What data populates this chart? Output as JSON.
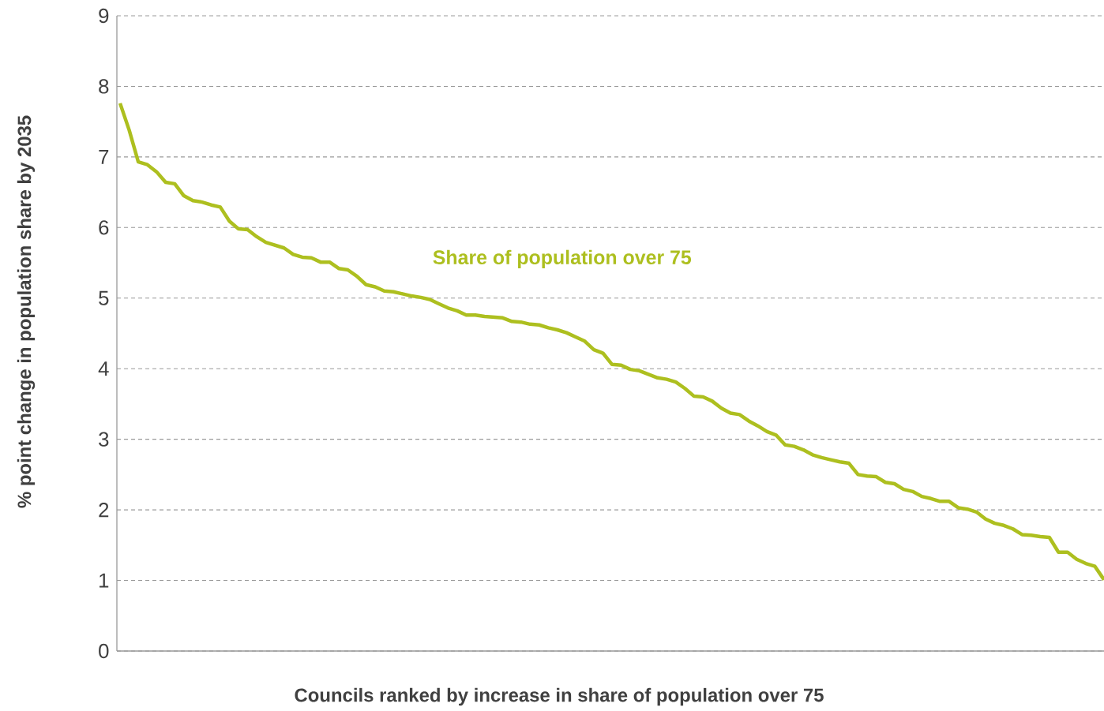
{
  "chart_data": {
    "type": "line",
    "xlabel": "Councils ranked by increase in share of population over 75",
    "ylabel": "% point change in population share by 2035",
    "categories": [
      null,
      null,
      null,
      null,
      null,
      null,
      null,
      null,
      null,
      null,
      null,
      null,
      null,
      null,
      null,
      null,
      null,
      null,
      null,
      null,
      null,
      null,
      null,
      null,
      null,
      null,
      null,
      null,
      null,
      null,
      null,
      null,
      null,
      null,
      null,
      null,
      null,
      null,
      null,
      null,
      null,
      null,
      null,
      null,
      null,
      null,
      null,
      null,
      null,
      null,
      null,
      null,
      null,
      null,
      null,
      null,
      null,
      null,
      null,
      null,
      null,
      null,
      null,
      null,
      null,
      null,
      null,
      null,
      null,
      null,
      null,
      null,
      null,
      null,
      null,
      null,
      null,
      null,
      null,
      null,
      null,
      null,
      null,
      null,
      null,
      null,
      null,
      null,
      null,
      null,
      null,
      null,
      null,
      null,
      null,
      null,
      null,
      null,
      null,
      null,
      null,
      null,
      null,
      null,
      null,
      null,
      null,
      null,
      null
    ],
    "series": [
      {
        "name": "Share of population over 75",
        "color": "#adbf1f",
        "values": [
          7.76,
          7.38,
          6.93,
          6.89,
          6.79,
          6.64,
          6.62,
          6.45,
          6.38,
          6.36,
          6.32,
          6.29,
          6.09,
          5.98,
          5.97,
          5.87,
          5.79,
          5.75,
          5.71,
          5.62,
          5.58,
          5.57,
          5.51,
          5.51,
          5.42,
          5.4,
          5.31,
          5.19,
          5.16,
          5.1,
          5.09,
          5.06,
          5.03,
          5.01,
          4.98,
          4.92,
          4.86,
          4.82,
          4.76,
          4.76,
          4.74,
          4.73,
          4.72,
          4.67,
          4.66,
          4.63,
          4.62,
          4.58,
          4.55,
          4.51,
          4.45,
          4.39,
          4.27,
          4.22,
          4.06,
          4.05,
          3.99,
          3.97,
          3.92,
          3.87,
          3.85,
          3.81,
          3.72,
          3.61,
          3.6,
          3.54,
          3.44,
          3.37,
          3.35,
          3.26,
          3.19,
          3.11,
          3.06,
          2.92,
          2.9,
          2.85,
          2.78,
          2.74,
          2.71,
          2.68,
          2.66,
          2.5,
          2.48,
          2.47,
          2.39,
          2.37,
          2.29,
          2.26,
          2.19,
          2.16,
          2.12,
          2.12,
          2.03,
          2.01,
          1.97,
          1.87,
          1.81,
          1.78,
          1.73,
          1.65,
          1.64,
          1.62,
          1.61,
          1.4,
          1.4,
          1.3,
          1.24,
          1.2,
          1.01
        ]
      }
    ],
    "ylim": [
      0,
      9
    ],
    "yticks": [
      0,
      1,
      2,
      3,
      4,
      5,
      6,
      7,
      8,
      9
    ],
    "grid": "y",
    "line_style": "solid"
  }
}
